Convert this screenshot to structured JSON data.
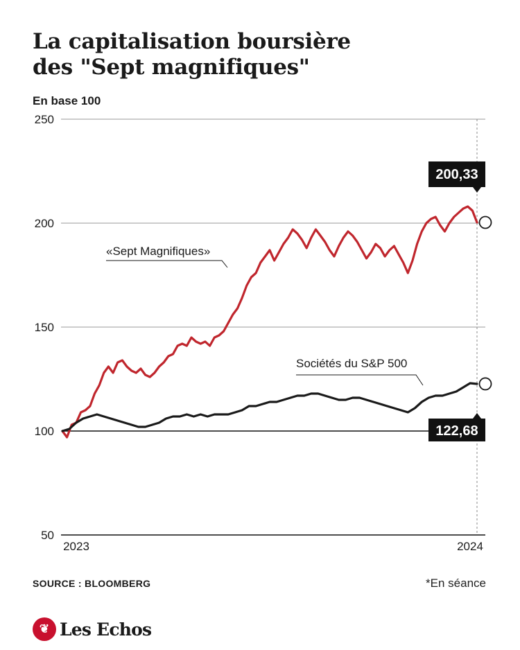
{
  "title_line1": "La capitalisation boursière",
  "title_line2": "des \"Sept magnifiques\"",
  "unit_label": "En base 100",
  "source": "SOURCE : BLOOMBERG",
  "note": "*En séance",
  "logo": {
    "mark": "❦",
    "text": "Les Echos",
    "color": "#c8102e"
  },
  "chart_data": {
    "type": "line",
    "y_ticks": [
      "250",
      "200",
      "150",
      "100",
      "50"
    ],
    "x_ticks": [
      "2023",
      "2024"
    ],
    "ylim": [
      50,
      250
    ],
    "grid": true,
    "series": [
      {
        "name": "«Sept Magnifiques»",
        "color": "#c0262d",
        "end_label": "200,33",
        "values": [
          [
            0,
            100
          ],
          [
            2,
            97
          ],
          [
            4,
            103
          ],
          [
            6,
            104
          ],
          [
            8,
            109
          ],
          [
            10,
            110
          ],
          [
            12,
            112
          ],
          [
            14,
            118
          ],
          [
            16,
            122
          ],
          [
            18,
            128
          ],
          [
            20,
            131
          ],
          [
            22,
            128
          ],
          [
            24,
            133
          ],
          [
            26,
            134
          ],
          [
            28,
            131
          ],
          [
            30,
            129
          ],
          [
            32,
            128
          ],
          [
            34,
            130
          ],
          [
            36,
            127
          ],
          [
            38,
            126
          ],
          [
            40,
            128
          ],
          [
            42,
            131
          ],
          [
            44,
            133
          ],
          [
            46,
            136
          ],
          [
            48,
            137
          ],
          [
            50,
            141
          ],
          [
            52,
            142
          ],
          [
            54,
            141
          ],
          [
            56,
            145
          ],
          [
            58,
            143
          ],
          [
            60,
            142
          ],
          [
            62,
            143
          ],
          [
            64,
            141
          ],
          [
            66,
            145
          ],
          [
            68,
            146
          ],
          [
            70,
            148
          ],
          [
            72,
            152
          ],
          [
            74,
            156
          ],
          [
            76,
            159
          ],
          [
            78,
            164
          ],
          [
            80,
            170
          ],
          [
            82,
            174
          ],
          [
            84,
            176
          ],
          [
            86,
            181
          ],
          [
            88,
            184
          ],
          [
            90,
            187
          ],
          [
            92,
            182
          ],
          [
            94,
            186
          ],
          [
            96,
            190
          ],
          [
            98,
            193
          ],
          [
            100,
            197
          ],
          [
            102,
            195
          ],
          [
            104,
            192
          ],
          [
            106,
            188
          ],
          [
            108,
            193
          ],
          [
            110,
            197
          ],
          [
            112,
            194
          ],
          [
            114,
            191
          ],
          [
            116,
            187
          ],
          [
            118,
            184
          ],
          [
            120,
            189
          ],
          [
            122,
            193
          ],
          [
            124,
            196
          ],
          [
            126,
            194
          ],
          [
            128,
            191
          ],
          [
            130,
            187
          ],
          [
            132,
            183
          ],
          [
            134,
            186
          ],
          [
            136,
            190
          ],
          [
            138,
            188
          ],
          [
            140,
            184
          ],
          [
            142,
            187
          ],
          [
            144,
            189
          ],
          [
            146,
            185
          ],
          [
            148,
            181
          ],
          [
            150,
            176
          ],
          [
            152,
            182
          ],
          [
            154,
            190
          ],
          [
            156,
            196
          ],
          [
            158,
            200
          ],
          [
            160,
            202
          ],
          [
            162,
            203
          ],
          [
            164,
            199
          ],
          [
            166,
            196
          ],
          [
            168,
            200
          ],
          [
            170,
            203
          ],
          [
            172,
            205
          ],
          [
            174,
            207
          ],
          [
            176,
            208
          ],
          [
            178,
            206
          ],
          [
            180,
            200.33
          ]
        ]
      },
      {
        "name": "Sociétés du S&P 500",
        "color": "#1a1a1a",
        "end_label": "122,68",
        "values": [
          [
            0,
            100
          ],
          [
            3,
            101
          ],
          [
            6,
            104
          ],
          [
            9,
            106
          ],
          [
            12,
            107
          ],
          [
            15,
            108
          ],
          [
            18,
            107
          ],
          [
            21,
            106
          ],
          [
            24,
            105
          ],
          [
            27,
            104
          ],
          [
            30,
            103
          ],
          [
            33,
            102
          ],
          [
            36,
            102
          ],
          [
            39,
            103
          ],
          [
            42,
            104
          ],
          [
            45,
            106
          ],
          [
            48,
            107
          ],
          [
            51,
            107
          ],
          [
            54,
            108
          ],
          [
            57,
            107
          ],
          [
            60,
            108
          ],
          [
            63,
            107
          ],
          [
            66,
            108
          ],
          [
            69,
            108
          ],
          [
            72,
            108
          ],
          [
            75,
            109
          ],
          [
            78,
            110
          ],
          [
            81,
            112
          ],
          [
            84,
            112
          ],
          [
            87,
            113
          ],
          [
            90,
            114
          ],
          [
            93,
            114
          ],
          [
            96,
            115
          ],
          [
            99,
            116
          ],
          [
            102,
            117
          ],
          [
            105,
            117
          ],
          [
            108,
            118
          ],
          [
            111,
            118
          ],
          [
            114,
            117
          ],
          [
            117,
            116
          ],
          [
            120,
            115
          ],
          [
            123,
            115
          ],
          [
            126,
            116
          ],
          [
            129,
            116
          ],
          [
            132,
            115
          ],
          [
            135,
            114
          ],
          [
            138,
            113
          ],
          [
            141,
            112
          ],
          [
            144,
            111
          ],
          [
            147,
            110
          ],
          [
            150,
            109
          ],
          [
            153,
            111
          ],
          [
            156,
            114
          ],
          [
            159,
            116
          ],
          [
            162,
            117
          ],
          [
            165,
            117
          ],
          [
            168,
            118
          ],
          [
            171,
            119
          ],
          [
            174,
            121
          ],
          [
            177,
            123
          ],
          [
            180,
            122.68
          ]
        ]
      }
    ]
  }
}
